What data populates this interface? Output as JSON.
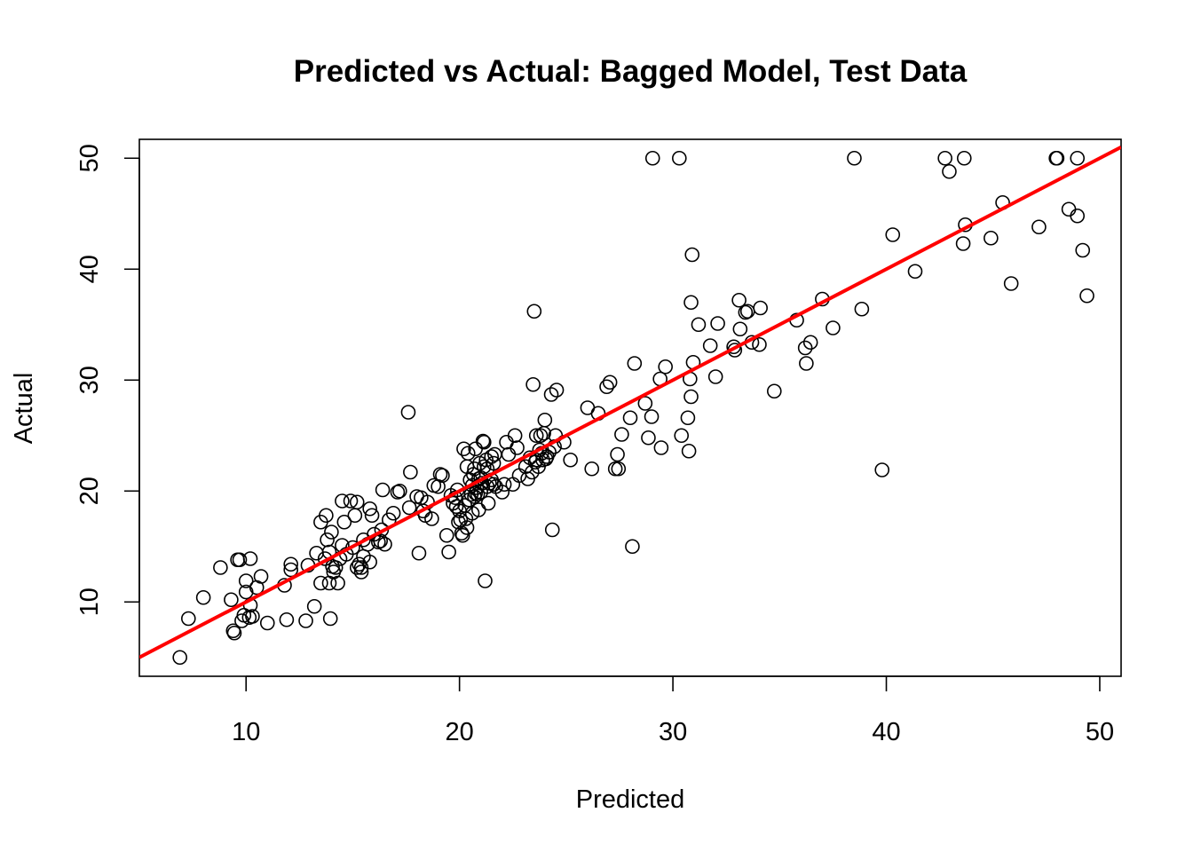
{
  "chart_data": {
    "type": "scatter",
    "title": "Predicted vs Actual: Bagged Model, Test Data",
    "xlabel": "Predicted",
    "ylabel": "Actual",
    "xlim": [
      5,
      51
    ],
    "ylim": [
      3.3,
      51.7
    ],
    "xticks": [
      10,
      20,
      30,
      40,
      50
    ],
    "yticks": [
      10,
      20,
      30,
      40,
      50
    ],
    "xtick_labels": [
      "10",
      "20",
      "30",
      "40",
      "50"
    ],
    "ytick_labels": [
      "10",
      "20",
      "30",
      "40",
      "50"
    ],
    "grid": false,
    "legend": "none",
    "point_color": "#000000",
    "line_color": "#ff0000",
    "fit_line": {
      "intercept": 0.0,
      "slope": 1.0
    },
    "points": [
      [
        6.9,
        5.0
      ],
      [
        7.3,
        8.5
      ],
      [
        8.0,
        10.4
      ],
      [
        8.8,
        13.1
      ],
      [
        9.3,
        10.2
      ],
      [
        9.4,
        7.4
      ],
      [
        9.45,
        7.2
      ],
      [
        9.6,
        13.8
      ],
      [
        9.7,
        13.8
      ],
      [
        9.8,
        8.3
      ],
      [
        9.9,
        8.8
      ],
      [
        10.0,
        11.9
      ],
      [
        10.0,
        10.9
      ],
      [
        10.15,
        8.6
      ],
      [
        10.2,
        13.9
      ],
      [
        10.2,
        9.7
      ],
      [
        10.3,
        8.7
      ],
      [
        10.5,
        11.3
      ],
      [
        10.7,
        12.3
      ],
      [
        11.0,
        8.1
      ],
      [
        11.8,
        11.5
      ],
      [
        11.9,
        8.4
      ],
      [
        12.1,
        13.4
      ],
      [
        12.1,
        12.9
      ],
      [
        12.8,
        8.3
      ],
      [
        12.9,
        13.3
      ],
      [
        13.2,
        9.6
      ],
      [
        13.3,
        14.4
      ],
      [
        13.5,
        17.2
      ],
      [
        13.5,
        11.7
      ],
      [
        13.7,
        13.9
      ],
      [
        13.75,
        17.8
      ],
      [
        13.8,
        15.6
      ],
      [
        13.9,
        11.7
      ],
      [
        13.9,
        14.5
      ],
      [
        13.95,
        8.5
      ],
      [
        14.0,
        16.3
      ],
      [
        14.05,
        13.2
      ],
      [
        14.1,
        12.7
      ],
      [
        14.2,
        13.1
      ],
      [
        14.3,
        11.7
      ],
      [
        14.4,
        13.9
      ],
      [
        14.5,
        15.1
      ],
      [
        14.5,
        19.1
      ],
      [
        14.6,
        17.2
      ],
      [
        14.7,
        14.3
      ],
      [
        14.9,
        19.1
      ],
      [
        15.0,
        14.9
      ],
      [
        15.1,
        17.8
      ],
      [
        15.2,
        13.1
      ],
      [
        15.2,
        19.0
      ],
      [
        15.3,
        13.4
      ],
      [
        15.4,
        12.7
      ],
      [
        15.4,
        13.1
      ],
      [
        15.5,
        15.6
      ],
      [
        15.5,
        14.1
      ],
      [
        15.7,
        15.2
      ],
      [
        15.8,
        18.4
      ],
      [
        15.8,
        13.6
      ],
      [
        15.9,
        17.8
      ],
      [
        16.0,
        16.1
      ],
      [
        16.2,
        15.4
      ],
      [
        16.3,
        15.5
      ],
      [
        16.35,
        16.5
      ],
      [
        16.4,
        20.1
      ],
      [
        16.5,
        15.2
      ],
      [
        16.7,
        17.4
      ],
      [
        16.9,
        18.0
      ],
      [
        17.1,
        19.9
      ],
      [
        17.2,
        20.0
      ],
      [
        17.6,
        27.1
      ],
      [
        17.65,
        18.5
      ],
      [
        17.7,
        21.7
      ],
      [
        18.0,
        19.5
      ],
      [
        18.1,
        14.4
      ],
      [
        18.2,
        19.4
      ],
      [
        18.3,
        18.2
      ],
      [
        18.4,
        17.8
      ],
      [
        18.5,
        19.0
      ],
      [
        18.7,
        17.5
      ],
      [
        18.8,
        20.5
      ],
      [
        19.0,
        20.4
      ],
      [
        19.1,
        21.5
      ],
      [
        19.2,
        21.4
      ],
      [
        19.4,
        16.0
      ],
      [
        19.5,
        14.5
      ],
      [
        19.6,
        19.6
      ],
      [
        19.7,
        18.9
      ],
      [
        19.8,
        19.4
      ],
      [
        19.85,
        18.6
      ],
      [
        19.9,
        20.1
      ],
      [
        19.95,
        17.2
      ],
      [
        20.0,
        18.2
      ],
      [
        20.05,
        17.4
      ],
      [
        20.1,
        16.2
      ],
      [
        20.15,
        16.0
      ],
      [
        20.2,
        23.8
      ],
      [
        20.25,
        18.7
      ],
      [
        20.3,
        17.5
      ],
      [
        20.35,
        16.7
      ],
      [
        20.35,
        22.2
      ],
      [
        20.4,
        23.4
      ],
      [
        20.45,
        19.2
      ],
      [
        20.5,
        21.0
      ],
      [
        20.55,
        19.7
      ],
      [
        20.6,
        18.0
      ],
      [
        20.6,
        20.5
      ],
      [
        20.65,
        21.5
      ],
      [
        20.7,
        19.5
      ],
      [
        20.7,
        22.0
      ],
      [
        20.75,
        23.8
      ],
      [
        20.75,
        19.8
      ],
      [
        20.8,
        20.3
      ],
      [
        20.85,
        19.7
      ],
      [
        20.9,
        21.1
      ],
      [
        20.9,
        18.3
      ],
      [
        20.95,
        22.5
      ],
      [
        21.0,
        21.2
      ],
      [
        21.0,
        19.9
      ],
      [
        21.05,
        20.7
      ],
      [
        21.1,
        24.5
      ],
      [
        21.15,
        24.4
      ],
      [
        21.15,
        22.2
      ],
      [
        21.2,
        11.9
      ],
      [
        21.25,
        22.8
      ],
      [
        21.3,
        20.4
      ],
      [
        21.3,
        22.0
      ],
      [
        21.35,
        18.9
      ],
      [
        21.4,
        20.7
      ],
      [
        21.5,
        23.1
      ],
      [
        21.5,
        21.0
      ],
      [
        21.6,
        20.6
      ],
      [
        21.6,
        22.5
      ],
      [
        21.65,
        23.3
      ],
      [
        21.7,
        20.4
      ],
      [
        22.0,
        19.9
      ],
      [
        22.1,
        20.6
      ],
      [
        22.2,
        24.4
      ],
      [
        22.3,
        23.3
      ],
      [
        22.5,
        20.6
      ],
      [
        22.6,
        25.0
      ],
      [
        22.7,
        23.9
      ],
      [
        22.8,
        21.4
      ],
      [
        23.1,
        22.2
      ],
      [
        23.2,
        21.1
      ],
      [
        23.3,
        23.0
      ],
      [
        23.4,
        21.7
      ],
      [
        23.45,
        29.6
      ],
      [
        23.5,
        36.2
      ],
      [
        23.55,
        22.6
      ],
      [
        23.6,
        25.0
      ],
      [
        23.6,
        22.8
      ],
      [
        23.7,
        22.2
      ],
      [
        23.75,
        23.7
      ],
      [
        23.8,
        25.0
      ],
      [
        23.85,
        23.4
      ],
      [
        23.9,
        22.8
      ],
      [
        23.95,
        25.2
      ],
      [
        24.0,
        26.4
      ],
      [
        24.05,
        22.9
      ],
      [
        24.1,
        23.1
      ],
      [
        24.2,
        23.5
      ],
      [
        24.3,
        28.7
      ],
      [
        24.35,
        16.5
      ],
      [
        24.45,
        24.0
      ],
      [
        24.5,
        25.0
      ],
      [
        24.55,
        29.1
      ],
      [
        24.9,
        24.4
      ],
      [
        25.2,
        22.8
      ],
      [
        26.0,
        27.5
      ],
      [
        26.2,
        22.0
      ],
      [
        26.5,
        27.0
      ],
      [
        26.9,
        29.4
      ],
      [
        27.05,
        29.8
      ],
      [
        27.3,
        22.0
      ],
      [
        27.4,
        23.3
      ],
      [
        27.45,
        22.0
      ],
      [
        27.6,
        25.1
      ],
      [
        28.0,
        26.6
      ],
      [
        28.1,
        15.0
      ],
      [
        28.2,
        31.5
      ],
      [
        28.7,
        27.9
      ],
      [
        28.85,
        24.8
      ],
      [
        29.0,
        26.7
      ],
      [
        29.05,
        50.0
      ],
      [
        29.4,
        30.1
      ],
      [
        29.45,
        23.9
      ],
      [
        29.65,
        31.2
      ],
      [
        30.3,
        50.0
      ],
      [
        30.4,
        25.0
      ],
      [
        30.7,
        26.6
      ],
      [
        30.75,
        23.6
      ],
      [
        30.8,
        30.1
      ],
      [
        30.85,
        28.5
      ],
      [
        30.85,
        37.0
      ],
      [
        30.9,
        41.3
      ],
      [
        30.95,
        31.6
      ],
      [
        31.2,
        35.0
      ],
      [
        31.75,
        33.1
      ],
      [
        32.0,
        30.3
      ],
      [
        32.1,
        35.1
      ],
      [
        32.85,
        33.0
      ],
      [
        32.9,
        32.7
      ],
      [
        33.1,
        37.2
      ],
      [
        33.15,
        34.6
      ],
      [
        33.4,
        36.1
      ],
      [
        33.5,
        36.2
      ],
      [
        33.7,
        33.4
      ],
      [
        34.05,
        33.2
      ],
      [
        34.1,
        36.5
      ],
      [
        34.75,
        29.0
      ],
      [
        35.8,
        35.4
      ],
      [
        36.2,
        32.9
      ],
      [
        36.25,
        31.5
      ],
      [
        36.45,
        33.4
      ],
      [
        37.0,
        37.3
      ],
      [
        37.5,
        34.7
      ],
      [
        38.5,
        50.0
      ],
      [
        38.85,
        36.4
      ],
      [
        39.8,
        21.9
      ],
      [
        40.3,
        43.1
      ],
      [
        41.35,
        39.8
      ],
      [
        42.75,
        50.0
      ],
      [
        42.95,
        48.8
      ],
      [
        43.6,
        42.3
      ],
      [
        43.65,
        50.0
      ],
      [
        43.7,
        44.0
      ],
      [
        44.9,
        42.8
      ],
      [
        45.45,
        46.0
      ],
      [
        45.85,
        38.7
      ],
      [
        47.15,
        43.8
      ],
      [
        47.95,
        50.0
      ],
      [
        48.0,
        50.0
      ],
      [
        48.55,
        45.4
      ],
      [
        48.95,
        50.0
      ],
      [
        48.95,
        44.8
      ],
      [
        49.2,
        41.7
      ],
      [
        49.4,
        37.6
      ]
    ]
  }
}
